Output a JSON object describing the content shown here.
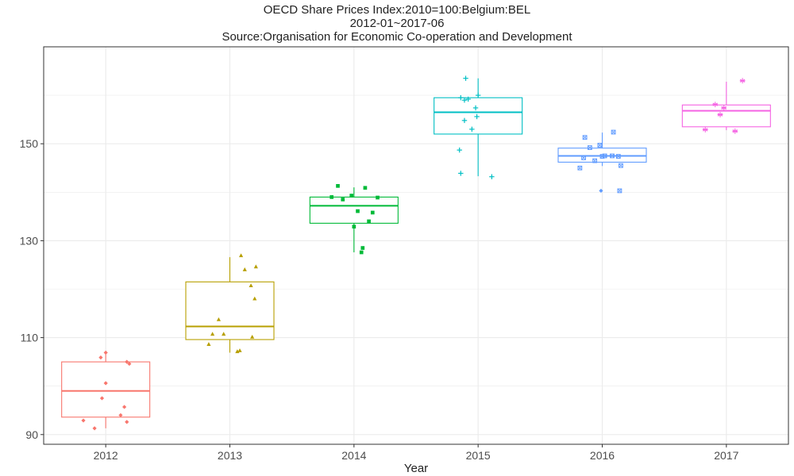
{
  "chart_data": {
    "type": "boxplot",
    "title": "OECD Share Prices Index:2010=100:Belgium:BEL",
    "subtitle": "2012-01~2017-06",
    "source": "Source:Organisation for Economic Co-operation and Development",
    "xlabel": "Year",
    "ylabel": "",
    "ylim": [
      88,
      170
    ],
    "yticks": [
      90,
      110,
      130,
      150
    ],
    "grid": true,
    "categories": [
      "2012",
      "2013",
      "2014",
      "2015",
      "2016",
      "2017"
    ],
    "series": [
      {
        "category": "2012",
        "color": "#F8766D",
        "marker": "diamond",
        "box": {
          "min": 91.3,
          "q1": 93.6,
          "median": 99.0,
          "q3": 105.0,
          "max": 106.6
        },
        "points": [
          [
            -0.18,
            92.9
          ],
          [
            -0.09,
            91.3
          ],
          [
            -0.04,
            105.9
          ],
          [
            -0.03,
            97.5
          ],
          [
            0.0,
            100.6
          ],
          [
            0.0,
            106.9
          ],
          [
            0.12,
            94.0
          ],
          [
            0.15,
            95.7
          ],
          [
            0.17,
            105.0
          ],
          [
            0.17,
            92.6
          ],
          [
            0.19,
            104.6
          ]
        ]
      },
      {
        "category": "2013",
        "color": "#B79F00",
        "marker": "triangle",
        "box": {
          "min": 106.9,
          "q1": 109.6,
          "median": 112.3,
          "q3": 121.5,
          "max": 126.6
        },
        "points": [
          [
            -0.17,
            108.6
          ],
          [
            -0.14,
            110.7
          ],
          [
            -0.05,
            110.7
          ],
          [
            -0.09,
            113.7
          ],
          [
            0.06,
            107.1
          ],
          [
            0.08,
            107.3
          ],
          [
            0.09,
            126.9
          ],
          [
            0.12,
            124.0
          ],
          [
            0.18,
            110.1
          ],
          [
            0.17,
            120.7
          ],
          [
            0.2,
            118.0
          ],
          [
            0.21,
            124.6
          ]
        ]
      },
      {
        "category": "2014",
        "color": "#00BA38",
        "marker": "square",
        "box": {
          "min": 127.6,
          "q1": 133.6,
          "median": 137.2,
          "q3": 139.0,
          "max": 141.0
        },
        "points": [
          [
            -0.18,
            139.0
          ],
          [
            -0.13,
            141.3
          ],
          [
            -0.09,
            138.5
          ],
          [
            -0.02,
            139.3
          ],
          [
            0.0,
            132.9
          ],
          [
            0.03,
            136.1
          ],
          [
            0.06,
            127.6
          ],
          [
            0.07,
            128.5
          ],
          [
            0.09,
            140.9
          ],
          [
            0.12,
            134.0
          ],
          [
            0.15,
            135.8
          ],
          [
            0.19,
            138.9
          ]
        ]
      },
      {
        "category": "2015",
        "color": "#00BFC4",
        "marker": "plus",
        "box": {
          "min": 143.3,
          "q1": 152.0,
          "median": 156.5,
          "q3": 159.5,
          "max": 163.5
        },
        "points": [
          [
            -0.15,
            148.7
          ],
          [
            -0.14,
            143.9
          ],
          [
            -0.14,
            159.5
          ],
          [
            -0.11,
            159.0
          ],
          [
            -0.11,
            154.8
          ],
          [
            -0.1,
            163.5
          ],
          [
            -0.08,
            159.2
          ],
          [
            -0.05,
            153.0
          ],
          [
            -0.02,
            157.4
          ],
          [
            -0.01,
            155.6
          ],
          [
            0.0,
            160.0
          ],
          [
            0.11,
            143.2
          ]
        ]
      },
      {
        "category": "2016",
        "color": "#619CFF",
        "marker": "square-x",
        "box": {
          "min": 145.4,
          "q1": 146.2,
          "median": 147.5,
          "q3": 149.1,
          "max": 152.3
        },
        "points": [
          [
            -0.18,
            145.0
          ],
          [
            -0.15,
            147.1
          ],
          [
            -0.14,
            151.3
          ],
          [
            -0.1,
            149.2
          ],
          [
            -0.06,
            146.5
          ],
          [
            -0.02,
            149.7
          ],
          [
            0.0,
            147.4
          ],
          [
            0.02,
            147.5
          ],
          [
            0.08,
            147.5
          ],
          [
            0.09,
            152.4
          ],
          [
            0.13,
            147.4
          ],
          [
            0.15,
            145.5
          ],
          [
            0.14,
            140.3
          ]
        ]
      },
      {
        "category": "2017",
        "color": "#F564E3",
        "marker": "asterisk",
        "box": {
          "min": 152.8,
          "q1": 153.5,
          "median": 156.8,
          "q3": 158.0,
          "max": 162.8
        },
        "points": [
          [
            -0.17,
            152.9
          ],
          [
            -0.09,
            158.1
          ],
          [
            -0.05,
            156.0
          ],
          [
            -0.02,
            157.4
          ],
          [
            0.07,
            152.6
          ],
          [
            0.13,
            163.0
          ]
        ]
      }
    ],
    "outliers": [
      {
        "category": "2016",
        "color": "#619CFF",
        "marker": "diamond",
        "offset": -0.01,
        "value": 140.3
      }
    ]
  }
}
